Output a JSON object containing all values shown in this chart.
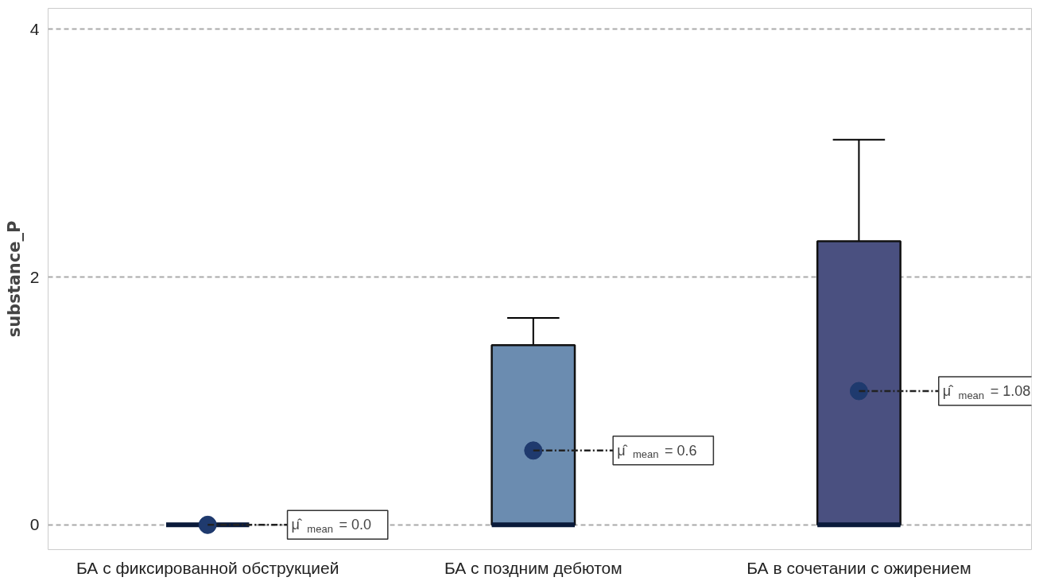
{
  "chart_data": {
    "type": "box",
    "ylabel": "substance_P",
    "categories": [
      "БА с фиксированной обструкцией",
      "БА с поздним дебютом",
      "БА в сочетании с ожирением"
    ],
    "boxes": [
      {
        "low": 0,
        "q1": 0,
        "median": 0,
        "q3": 0,
        "high": 0,
        "mean": 0.0
      },
      {
        "low": 0,
        "q1": 0,
        "median": 0,
        "q3": 1.45,
        "high": 1.67,
        "mean": 0.6
      },
      {
        "low": 0,
        "q1": 0,
        "median": 0,
        "q3": 2.29,
        "high": 3.11,
        "mean": 1.08
      }
    ],
    "colors": [
      "#111111",
      "#6b8cb0",
      "#4a5080"
    ],
    "ylim": [
      -0.2,
      4.17
    ],
    "yticks": [
      0,
      2,
      4
    ],
    "grid": "y",
    "annotations": [
      {
        "text": "μ̂$_{mean}$ = 0.0",
        "x": "БА с фиксированной обструкцией",
        "y": 0.0
      },
      "μ̂$_{mean}$ = 0.6",
      "μ̂$_{mean}$ = 1.08"
    ]
  }
}
